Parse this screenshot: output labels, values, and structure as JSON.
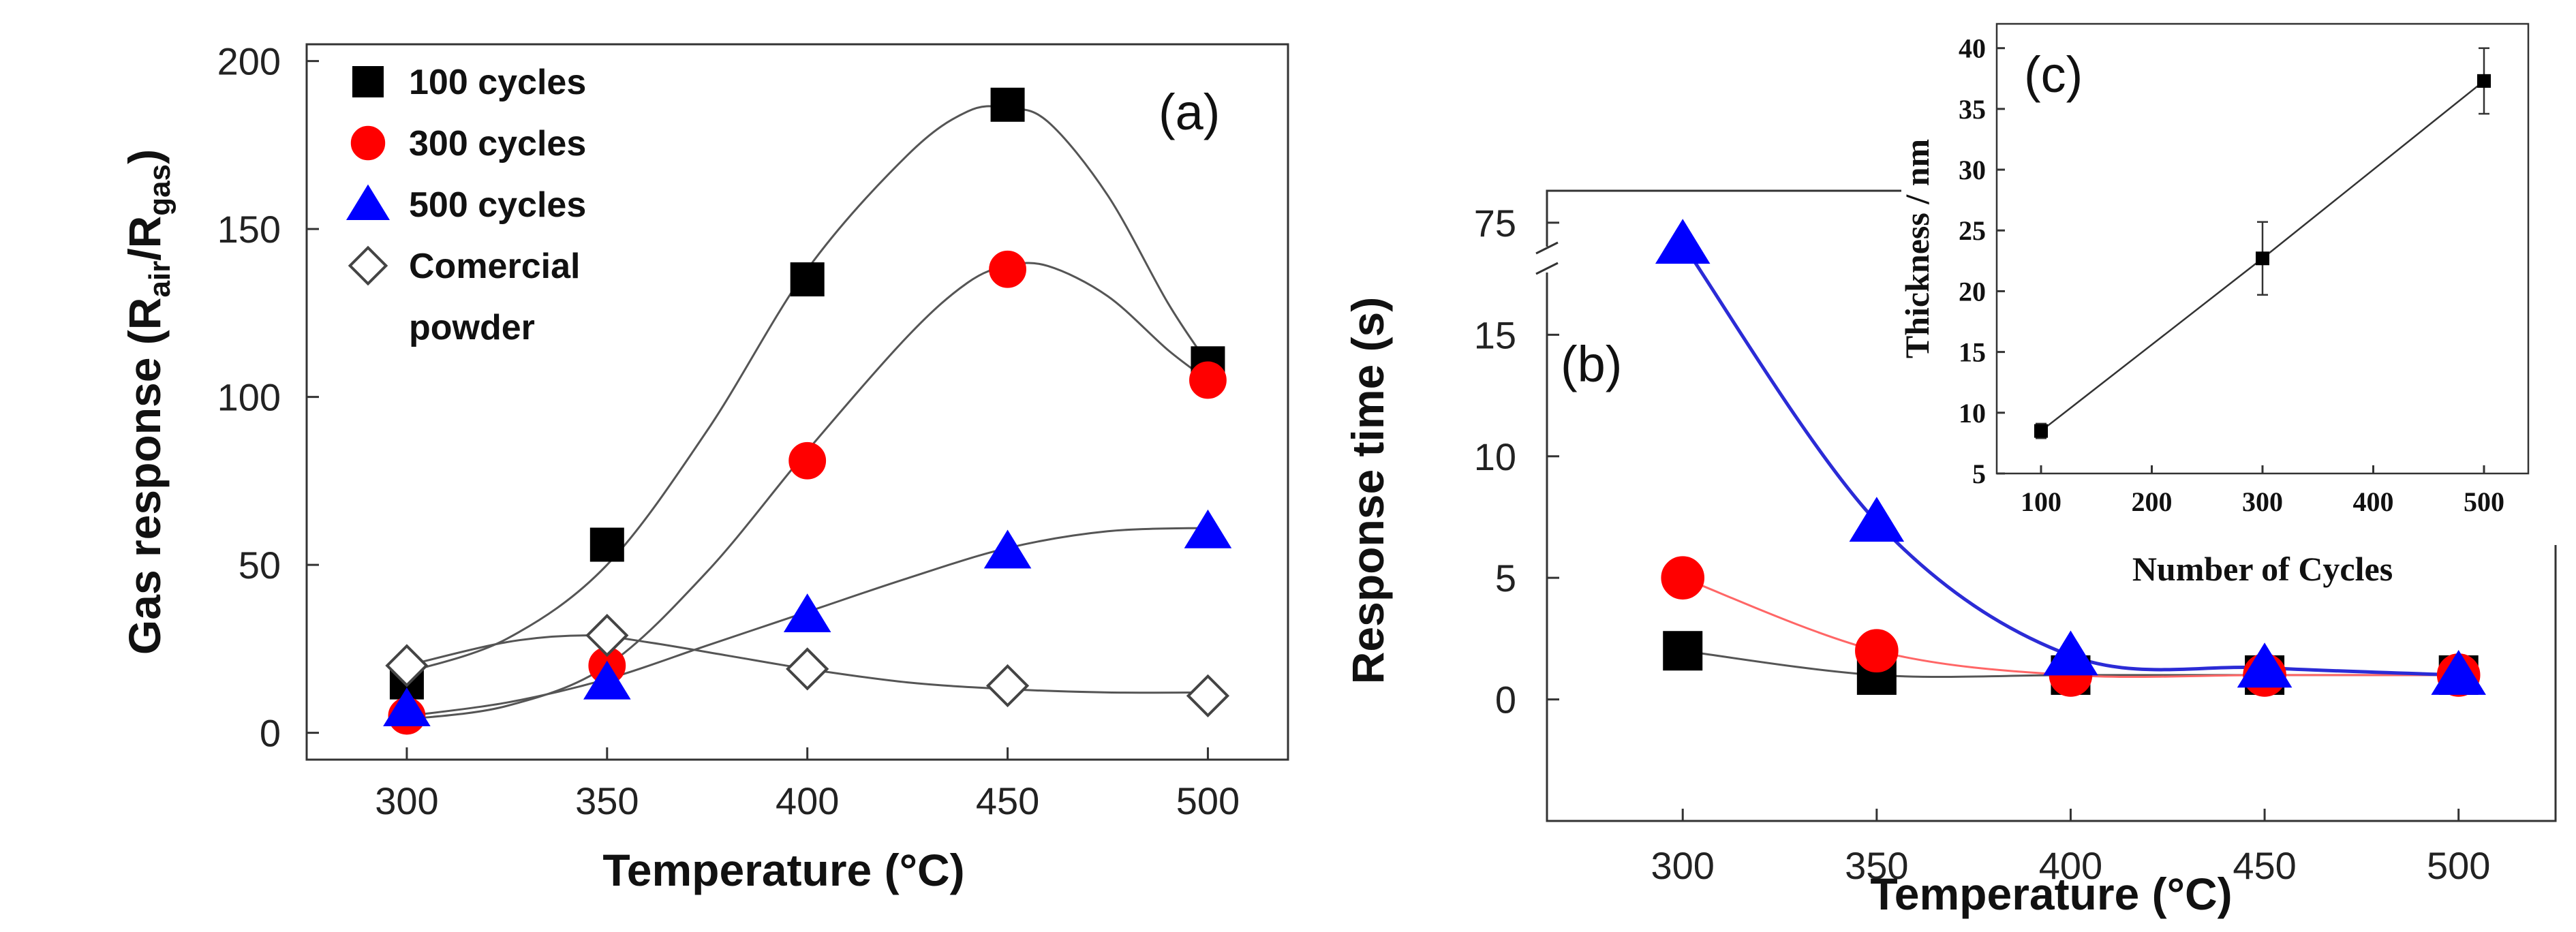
{
  "chart_data": [
    {
      "panel": "(a)",
      "type": "scatter",
      "title": "",
      "xlabel": "Temperature",
      "xlabel_unit": "(°C)",
      "ylabel": "Gas response",
      "ylabel_unit": "(Rair/Rgas)",
      "ylabel_parts": {
        "open": "(R",
        "sub1": "air",
        "slash": "/R",
        "sub2": "gas",
        "close": ")"
      },
      "x": [
        300,
        350,
        400,
        450,
        500
      ],
      "xlim": [
        275,
        520
      ],
      "ylim": [
        -8,
        205
      ],
      "xticks": [
        "300",
        "350",
        "400",
        "450",
        "500"
      ],
      "yticks": [
        "0",
        "50",
        "100",
        "150",
        "200"
      ],
      "xtick_values": [
        300,
        350,
        400,
        450,
        500
      ],
      "ytick_values": [
        0,
        50,
        100,
        150,
        200
      ],
      "series": [
        {
          "name": "100 cycles",
          "marker": "square",
          "color": "#000000",
          "fill": "#000000",
          "values": [
            15,
            56,
            135,
            187,
            110
          ],
          "fit": [
            [
              300,
              18
            ],
            [
              325,
              28
            ],
            [
              350,
              50
            ],
            [
              375,
              90
            ],
            [
              400,
              138
            ],
            [
              425,
              172
            ],
            [
              440,
              185
            ],
            [
              450,
              186
            ],
            [
              460,
              182
            ],
            [
              475,
              160
            ],
            [
              490,
              128
            ],
            [
              500,
              110
            ]
          ]
        },
        {
          "name": "300 cycles",
          "marker": "circle",
          "color": "#ff0000",
          "fill": "#ff0000",
          "values": [
            5,
            20,
            81,
            138,
            105
          ],
          "fit": [
            [
              300,
              4
            ],
            [
              325,
              8
            ],
            [
              350,
              20
            ],
            [
              375,
              48
            ],
            [
              400,
              84
            ],
            [
              425,
              118
            ],
            [
              440,
              134
            ],
            [
              450,
              139
            ],
            [
              460,
              139
            ],
            [
              475,
              130
            ],
            [
              490,
              114
            ],
            [
              500,
              105
            ]
          ]
        },
        {
          "name": "500 cycles",
          "marker": "triangle",
          "color": "#0000ff",
          "fill": "#0000ff",
          "values": [
            7,
            15,
            35,
            54,
            60
          ],
          "fit": [
            [
              300,
              5
            ],
            [
              325,
              9
            ],
            [
              350,
              16
            ],
            [
              375,
              26
            ],
            [
              400,
              36
            ],
            [
              425,
              46
            ],
            [
              450,
              55
            ],
            [
              475,
              60
            ],
            [
              500,
              61
            ]
          ]
        },
        {
          "name": "Comercial powder",
          "legend_lines": [
            "Comercial",
            "powder"
          ],
          "marker": "diamond-open",
          "color": "#444444",
          "fill": "none",
          "values": [
            20,
            29,
            19,
            14,
            11
          ],
          "fit": [
            [
              300,
              20
            ],
            [
              325,
              27
            ],
            [
              345,
              29
            ],
            [
              360,
              27
            ],
            [
              380,
              23
            ],
            [
              400,
              19
            ],
            [
              425,
              15
            ],
            [
              450,
              13
            ],
            [
              475,
              12
            ],
            [
              500,
              12
            ]
          ]
        }
      ]
    },
    {
      "panel": "(b)",
      "type": "line",
      "title": "",
      "xlabel": "Temperature",
      "xlabel_unit": "(°C)",
      "ylabel": "Response time (s)",
      "x": [
        300,
        350,
        400,
        450,
        500
      ],
      "xlim": [
        265,
        525
      ],
      "ylim_lower": [
        -5,
        17
      ],
      "ylim_upper": [
        70,
        78
      ],
      "axis_break": true,
      "xticks": [
        "300",
        "350",
        "400",
        "450",
        "500"
      ],
      "yticks": [
        "0",
        "5",
        "10",
        "15",
        "75"
      ],
      "xtick_values": [
        300,
        350,
        400,
        450,
        500
      ],
      "ytick_values_lower": [
        0,
        5,
        10,
        15
      ],
      "ytick_values_upper": [
        75
      ],
      "series": [
        {
          "name": "100 cycles",
          "marker": "square",
          "color": "#000000",
          "fill": "#000000",
          "values": [
            2,
            1,
            1,
            1,
            1
          ]
        },
        {
          "name": "300 cycles",
          "marker": "circle",
          "color": "#ff0000",
          "fill": "#ff0000",
          "values": [
            5,
            2,
            1,
            1,
            1
          ]
        },
        {
          "name": "500 cycles",
          "marker": "triangle",
          "color": "#0000ff",
          "fill": "#0000ff",
          "values": [
            73,
            7.3,
            1.8,
            1.3,
            1.0
          ]
        }
      ]
    },
    {
      "panel": "(c)",
      "type": "line",
      "title": "",
      "xlabel": "Number of Cycles",
      "ylabel": "Thickness / nm",
      "x": [
        100,
        300,
        500
      ],
      "values": [
        8.5,
        22.7,
        37.3
      ],
      "errors": [
        0.6,
        3.0,
        2.7
      ],
      "xlim": [
        60,
        540
      ],
      "ylim": [
        5,
        42
      ],
      "xticks": [
        "100",
        "200",
        "300",
        "400",
        "500"
      ],
      "yticks": [
        "5",
        "10",
        "15",
        "20",
        "25",
        "30",
        "35",
        "40"
      ],
      "xtick_values": [
        100,
        200,
        300,
        400,
        500
      ],
      "ytick_values": [
        5,
        10,
        15,
        20,
        25,
        30,
        35,
        40
      ],
      "color": "#000000"
    }
  ]
}
